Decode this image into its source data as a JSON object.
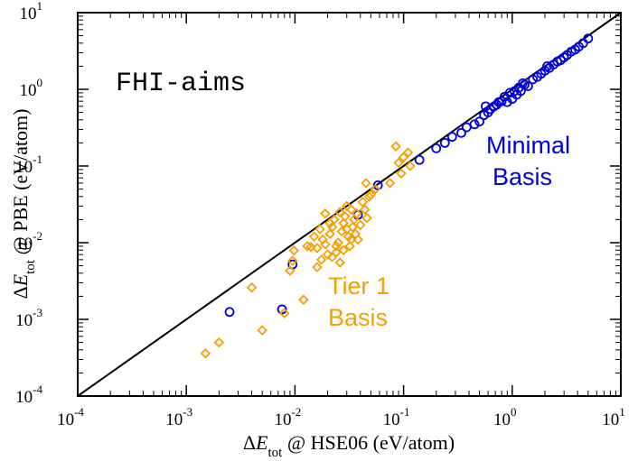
{
  "chart_data": {
    "type": "scatter",
    "title": "",
    "scale": "log-log",
    "xlim": [
      0.0001,
      10
    ],
    "ylim": [
      0.0001,
      10
    ],
    "x_ticks": [
      {
        "base": "10",
        "exp": "-4"
      },
      {
        "base": "10",
        "exp": "-3"
      },
      {
        "base": "10",
        "exp": "-2"
      },
      {
        "base": "10",
        "exp": "-1"
      },
      {
        "base": "10",
        "exp": "0"
      },
      {
        "base": "10",
        "exp": "1"
      }
    ],
    "y_ticks": [
      {
        "base": "10",
        "exp": "-4"
      },
      {
        "base": "10",
        "exp": "-3"
      },
      {
        "base": "10",
        "exp": "-2"
      },
      {
        "base": "10",
        "exp": "-1"
      },
      {
        "base": "10",
        "exp": "0"
      },
      {
        "base": "10",
        "exp": "1"
      }
    ],
    "xlabel": {
      "delta": "Δ",
      "var": "E",
      "sub": "tot",
      "rest": " @ HSE06 (eV/atom)"
    },
    "ylabel": {
      "delta": "Δ",
      "var": "E",
      "sub": "tot",
      "rest": " @ PBE (eV/atom)"
    },
    "annotations": {
      "code": "FHI-aims",
      "minimal_line1": "Minimal",
      "minimal_line2": "Basis",
      "tier1_line1": "Tier 1",
      "tier1_line2": "Basis"
    },
    "reference_line": {
      "name": "y = x",
      "color": "#000000"
    },
    "series": [
      {
        "name": "Minimal Basis",
        "marker": "circle",
        "color": "#0000dd",
        "points": [
          [
            0.0025,
            0.00125
          ],
          [
            0.0076,
            0.00135
          ],
          [
            0.0095,
            0.0052
          ],
          [
            0.038,
            0.023
          ],
          [
            0.058,
            0.056
          ],
          [
            0.14,
            0.12
          ],
          [
            0.2,
            0.17
          ],
          [
            0.24,
            0.2
          ],
          [
            0.28,
            0.24
          ],
          [
            0.34,
            0.27
          ],
          [
            0.38,
            0.32
          ],
          [
            0.45,
            0.35
          ],
          [
            0.5,
            0.38
          ],
          [
            0.55,
            0.46
          ],
          [
            0.6,
            0.5
          ],
          [
            0.63,
            0.55
          ],
          [
            0.68,
            0.6
          ],
          [
            0.72,
            0.63
          ],
          [
            0.8,
            0.7
          ],
          [
            0.85,
            0.8
          ],
          [
            0.9,
            0.68
          ],
          [
            0.95,
            0.9
          ],
          [
            1.0,
            0.75
          ],
          [
            1.05,
            0.95
          ],
          [
            1.1,
            0.85
          ],
          [
            1.15,
            1.05
          ],
          [
            1.2,
            0.95
          ],
          [
            1.3,
            1.15
          ],
          [
            1.4,
            1.1
          ],
          [
            1.55,
            1.35
          ],
          [
            1.7,
            1.45
          ],
          [
            1.85,
            1.6
          ],
          [
            2.0,
            1.75
          ],
          [
            2.2,
            1.9
          ],
          [
            2.4,
            2.1
          ],
          [
            2.6,
            2.3
          ],
          [
            2.8,
            2.4
          ],
          [
            3.0,
            2.6
          ],
          [
            3.2,
            2.8
          ],
          [
            3.5,
            3.1
          ],
          [
            3.8,
            3.3
          ],
          [
            4.1,
            3.6
          ],
          [
            4.5,
            4.0
          ],
          [
            5.0,
            4.6
          ],
          [
            0.57,
            0.6
          ],
          [
            0.75,
            0.68
          ],
          [
            1.25,
            1.2
          ],
          [
            2.1,
            2.0
          ]
        ]
      },
      {
        "name": "Tier 1 Basis",
        "marker": "diamond",
        "color": "#f5a000",
        "points": [
          [
            0.0015,
            0.00036
          ],
          [
            0.002,
            0.0005
          ],
          [
            0.004,
            0.0026
          ],
          [
            0.005,
            0.00072
          ],
          [
            0.008,
            0.0012
          ],
          [
            0.009,
            0.0043
          ],
          [
            0.0095,
            0.0058
          ],
          [
            0.0098,
            0.0079
          ],
          [
            0.012,
            0.0018
          ],
          [
            0.013,
            0.009
          ],
          [
            0.014,
            0.0088
          ],
          [
            0.015,
            0.012
          ],
          [
            0.016,
            0.0085
          ],
          [
            0.017,
            0.015
          ],
          [
            0.018,
            0.011
          ],
          [
            0.019,
            0.0095
          ],
          [
            0.02,
            0.007
          ],
          [
            0.021,
            0.013
          ],
          [
            0.022,
            0.016
          ],
          [
            0.023,
            0.02
          ],
          [
            0.024,
            0.0075
          ],
          [
            0.025,
            0.01
          ],
          [
            0.026,
            0.025
          ],
          [
            0.027,
            0.014
          ],
          [
            0.028,
            0.018
          ],
          [
            0.029,
            0.022
          ],
          [
            0.03,
            0.03
          ],
          [
            0.031,
            0.012
          ],
          [
            0.032,
            0.009
          ],
          [
            0.033,
            0.027
          ],
          [
            0.034,
            0.016
          ],
          [
            0.035,
            0.02
          ],
          [
            0.036,
            0.013
          ],
          [
            0.037,
            0.024
          ],
          [
            0.038,
            0.011
          ],
          [
            0.04,
            0.017
          ],
          [
            0.042,
            0.034
          ],
          [
            0.044,
            0.027
          ],
          [
            0.046,
            0.021
          ],
          [
            0.048,
            0.04
          ],
          [
            0.05,
            0.042
          ],
          [
            0.055,
            0.05
          ],
          [
            0.022,
            0.0065
          ],
          [
            0.024,
            0.009
          ],
          [
            0.021,
            0.018
          ],
          [
            0.026,
            0.0055
          ],
          [
            0.028,
            0.008
          ],
          [
            0.03,
            0.015
          ],
          [
            0.033,
            0.011
          ],
          [
            0.019,
            0.024
          ],
          [
            0.075,
            0.06
          ],
          [
            0.085,
            0.18
          ],
          [
            0.09,
            0.11
          ],
          [
            0.095,
            0.08
          ],
          [
            0.1,
            0.13
          ],
          [
            0.11,
            0.15
          ],
          [
            0.115,
            0.1
          ],
          [
            0.045,
            0.06
          ],
          [
            0.016,
            0.0048
          ],
          [
            0.0175,
            0.006
          ]
        ]
      }
    ]
  }
}
